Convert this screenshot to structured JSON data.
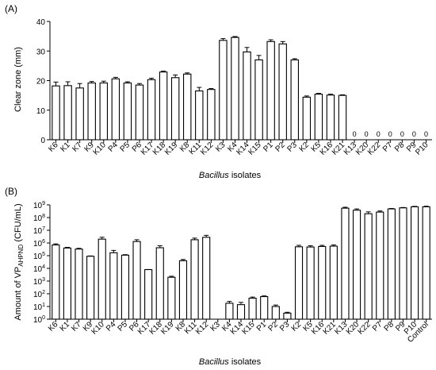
{
  "chart_data": [
    {
      "panel": "(A)",
      "type": "bar",
      "xlabel_italic": "Bacillus",
      "xlabel_rest": " isolates",
      "ylabel": "Clear zone (mm)",
      "ylim": [
        0,
        40
      ],
      "yticks": [
        0,
        10,
        20,
        30,
        40
      ],
      "categories": [
        "K6",
        "K1",
        "K7",
        "K9",
        "K10",
        "P4",
        "P5",
        "P6",
        "K17",
        "K18",
        "K19",
        "K8",
        "K11",
        "K12",
        "K3",
        "K4",
        "K14",
        "K15",
        "P1",
        "P2",
        "P3",
        "K2",
        "K5",
        "K16",
        "K21",
        "K13",
        "K20",
        "K22",
        "P7",
        "P8",
        "P9",
        "P10"
      ],
      "values": [
        18.2,
        18.3,
        17.5,
        19.2,
        19.2,
        20.6,
        19.2,
        18.5,
        20.3,
        22.9,
        21.0,
        22.2,
        16.5,
        17.0,
        33.6,
        34.6,
        29.7,
        27.0,
        33.2,
        32.4,
        27.0,
        14.4,
        15.4,
        15.1,
        15.0,
        0,
        0,
        0,
        0,
        0,
        0,
        0
      ],
      "errors": [
        1.3,
        1.3,
        1.5,
        0.5,
        0.6,
        0.5,
        0.4,
        0.5,
        0.5,
        0.3,
        0.9,
        0.4,
        1.2,
        0.3,
        0.6,
        0.3,
        1.5,
        1.5,
        0.6,
        0.8,
        0.4,
        0.4,
        0.3,
        0.3,
        0.2,
        0,
        0,
        0,
        0,
        0,
        0,
        0
      ],
      "zero_labels": [
        "0",
        "0",
        "0",
        "0",
        "0",
        "0",
        "0"
      ]
    },
    {
      "panel": "(B)",
      "type": "bar",
      "scale": "log",
      "xlabel_italic": "Bacillus",
      "xlabel_rest": " isolates",
      "ylabel_main": "Amount of VP",
      "ylabel_sub": "AHPND",
      "ylabel_tail": " (CFU/mL)",
      "ylim_exp": [
        0,
        9
      ],
      "ytick_base": "10",
      "ytick_exps": [
        "0",
        "1",
        "2",
        "3",
        "4",
        "5",
        "6",
        "7",
        "8",
        "9"
      ],
      "categories": [
        "K6",
        "K1",
        "K7",
        "K9",
        "K10",
        "P4",
        "P5",
        "P6",
        "K17",
        "K18",
        "K19",
        "K8",
        "K11",
        "K12",
        "K3",
        "K4",
        "K14",
        "K15",
        "P1",
        "P2",
        "P3",
        "K2",
        "K5",
        "K16",
        "K21",
        "K13",
        "K20",
        "K22",
        "P7",
        "P8",
        "P9",
        "P10",
        "Control"
      ],
      "values": [
        700000,
        400000,
        330000,
        90000,
        2000000,
        170000,
        110000,
        1300000,
        8000,
        420000,
        2000,
        40000,
        1800000,
        2800000,
        1,
        18,
        14,
        45,
        60,
        10,
        3,
        500000,
        480000,
        530000,
        560000,
        550000000,
        380000000,
        200000000,
        270000000,
        480000000,
        580000000,
        700000000,
        700000000
      ],
      "err_high": [
        850000,
        450000,
        380000,
        95000,
        2800000,
        260000,
        120000,
        1800000,
        8200,
        600000,
        2400,
        50000,
        2400000,
        4000000,
        1,
        25,
        21,
        55,
        68,
        13,
        3.5,
        650000,
        600000,
        650000,
        700000,
        650000000,
        480000000,
        280000000,
        330000000,
        520000000,
        620000000,
        760000000,
        780000000
      ]
    }
  ]
}
